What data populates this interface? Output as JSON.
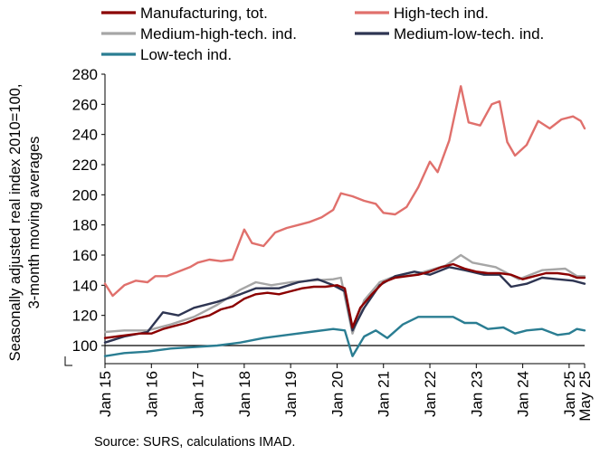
{
  "chart_data": {
    "type": "line",
    "xlabel": "",
    "ylabel_lines": [
      "Seasonally adjusted real  index 2010=100,",
      "3-month moving averages"
    ],
    "ylim": [
      88,
      280
    ],
    "yticks": [
      100,
      120,
      140,
      160,
      180,
      200,
      220,
      240,
      260,
      280
    ],
    "x_range": [
      "2015-01",
      "2025-05"
    ],
    "xticks": [
      {
        "date": "2015-01",
        "label": "Jan 15"
      },
      {
        "date": "2016-01",
        "label": "Jan 16"
      },
      {
        "date": "2017-01",
        "label": "Jan 17"
      },
      {
        "date": "2018-01",
        "label": "Jan 18"
      },
      {
        "date": "2019-01",
        "label": "Jan 19"
      },
      {
        "date": "2020-01",
        "label": "Jan 20"
      },
      {
        "date": "2021-01",
        "label": "Jan 21"
      },
      {
        "date": "2022-01",
        "label": "Jan 22"
      },
      {
        "date": "2023-01",
        "label": "Jan 23"
      },
      {
        "date": "2024-01",
        "label": "Jan 24"
      },
      {
        "date": "2025-01",
        "label": "Jan 25"
      },
      {
        "date": "2025-05",
        "label": "May 25"
      }
    ],
    "reference_line": 100,
    "grid": false,
    "legend_position": "top",
    "source": "Source: SURS, calculations IMAD.",
    "series": [
      {
        "name": "Manufacturing, tot.",
        "color": "#8b0000",
        "width": 2.4,
        "points": [
          [
            "2015-01",
            105
          ],
          [
            "2015-04",
            106
          ],
          [
            "2015-07",
            107
          ],
          [
            "2015-10",
            108
          ],
          [
            "2016-01",
            108
          ],
          [
            "2016-04",
            111
          ],
          [
            "2016-07",
            113
          ],
          [
            "2016-10",
            115
          ],
          [
            "2017-01",
            118
          ],
          [
            "2017-04",
            120
          ],
          [
            "2017-07",
            124
          ],
          [
            "2017-10",
            126
          ],
          [
            "2018-01",
            131
          ],
          [
            "2018-04",
            134
          ],
          [
            "2018-07",
            135
          ],
          [
            "2018-10",
            134
          ],
          [
            "2019-01",
            136
          ],
          [
            "2019-04",
            138
          ],
          [
            "2019-07",
            139
          ],
          [
            "2019-10",
            139
          ],
          [
            "2020-01",
            140
          ],
          [
            "2020-03",
            138
          ],
          [
            "2020-05",
            112
          ],
          [
            "2020-07",
            125
          ],
          [
            "2020-10",
            134
          ],
          [
            "2021-01",
            142
          ],
          [
            "2021-04",
            145
          ],
          [
            "2021-07",
            146
          ],
          [
            "2021-10",
            147
          ],
          [
            "2022-01",
            149
          ],
          [
            "2022-04",
            152
          ],
          [
            "2022-07",
            154
          ],
          [
            "2022-10",
            151
          ],
          [
            "2023-01",
            149
          ],
          [
            "2023-04",
            148
          ],
          [
            "2023-07",
            148
          ],
          [
            "2023-10",
            147
          ],
          [
            "2024-01",
            144
          ],
          [
            "2024-04",
            146
          ],
          [
            "2024-07",
            148
          ],
          [
            "2024-10",
            148
          ],
          [
            "2025-01",
            147
          ],
          [
            "2025-03",
            145
          ],
          [
            "2025-05",
            145
          ]
        ]
      },
      {
        "name": "High-tech ind.",
        "color": "#e0706c",
        "width": 2.4,
        "points": [
          [
            "2015-01",
            141
          ],
          [
            "2015-03",
            133
          ],
          [
            "2015-06",
            140
          ],
          [
            "2015-09",
            143
          ],
          [
            "2015-12",
            142
          ],
          [
            "2016-02",
            146
          ],
          [
            "2016-05",
            146
          ],
          [
            "2016-08",
            149
          ],
          [
            "2016-11",
            152
          ],
          [
            "2017-01",
            155
          ],
          [
            "2017-04",
            157
          ],
          [
            "2017-07",
            156
          ],
          [
            "2017-10",
            157
          ],
          [
            "2018-01",
            177
          ],
          [
            "2018-03",
            168
          ],
          [
            "2018-06",
            166
          ],
          [
            "2018-09",
            175
          ],
          [
            "2018-12",
            178
          ],
          [
            "2019-03",
            180
          ],
          [
            "2019-06",
            182
          ],
          [
            "2019-09",
            185
          ],
          [
            "2019-12",
            190
          ],
          [
            "2020-02",
            201
          ],
          [
            "2020-05",
            199
          ],
          [
            "2020-08",
            196
          ],
          [
            "2020-11",
            194
          ],
          [
            "2021-01",
            188
          ],
          [
            "2021-04",
            187
          ],
          [
            "2021-07",
            192
          ],
          [
            "2021-10",
            205
          ],
          [
            "2022-01",
            222
          ],
          [
            "2022-03",
            215
          ],
          [
            "2022-06",
            236
          ],
          [
            "2022-09",
            272
          ],
          [
            "2022-11",
            248
          ],
          [
            "2023-02",
            246
          ],
          [
            "2023-05",
            260
          ],
          [
            "2023-07",
            262
          ],
          [
            "2023-09",
            235
          ],
          [
            "2023-11",
            226
          ],
          [
            "2024-02",
            233
          ],
          [
            "2024-05",
            249
          ],
          [
            "2024-08",
            244
          ],
          [
            "2024-11",
            250
          ],
          [
            "2025-02",
            252
          ],
          [
            "2025-04",
            249
          ],
          [
            "2025-05",
            244
          ]
        ]
      },
      {
        "name": "Medium-high-tech. ind.",
        "color": "#a6a6a6",
        "width": 2.4,
        "points": [
          [
            "2015-01",
            109
          ],
          [
            "2015-06",
            110
          ],
          [
            "2015-12",
            110
          ],
          [
            "2016-06",
            114
          ],
          [
            "2016-12",
            119
          ],
          [
            "2017-06",
            127
          ],
          [
            "2017-12",
            137
          ],
          [
            "2018-04",
            142
          ],
          [
            "2018-08",
            140
          ],
          [
            "2019-01",
            142
          ],
          [
            "2019-06",
            143
          ],
          [
            "2019-12",
            144
          ],
          [
            "2020-02",
            145
          ],
          [
            "2020-05",
            108
          ],
          [
            "2020-08",
            130
          ],
          [
            "2020-12",
            142
          ],
          [
            "2021-03",
            145
          ],
          [
            "2021-09",
            147
          ],
          [
            "2022-01",
            150
          ],
          [
            "2022-05",
            153
          ],
          [
            "2022-09",
            160
          ],
          [
            "2022-12",
            155
          ],
          [
            "2023-06",
            152
          ],
          [
            "2023-12",
            144
          ],
          [
            "2024-06",
            150
          ],
          [
            "2024-12",
            151
          ],
          [
            "2025-03",
            146
          ],
          [
            "2025-05",
            146
          ]
        ]
      },
      {
        "name": "Medium-low-tech. ind.",
        "color": "#2e3552",
        "width": 2.4,
        "points": [
          [
            "2015-01",
            102
          ],
          [
            "2015-06",
            106
          ],
          [
            "2015-12",
            109
          ],
          [
            "2016-04",
            122
          ],
          [
            "2016-08",
            120
          ],
          [
            "2016-12",
            125
          ],
          [
            "2017-06",
            129
          ],
          [
            "2017-12",
            134
          ],
          [
            "2018-04",
            138
          ],
          [
            "2018-10",
            138
          ],
          [
            "2019-03",
            142
          ],
          [
            "2019-08",
            144
          ],
          [
            "2019-12",
            140
          ],
          [
            "2020-03",
            136
          ],
          [
            "2020-05",
            110
          ],
          [
            "2020-08",
            125
          ],
          [
            "2020-12",
            140
          ],
          [
            "2021-04",
            146
          ],
          [
            "2021-09",
            149
          ],
          [
            "2022-01",
            147
          ],
          [
            "2022-06",
            152
          ],
          [
            "2022-10",
            150
          ],
          [
            "2023-03",
            147
          ],
          [
            "2023-07",
            147
          ],
          [
            "2023-10",
            139
          ],
          [
            "2024-02",
            141
          ],
          [
            "2024-06",
            145
          ],
          [
            "2024-10",
            144
          ],
          [
            "2025-02",
            143
          ],
          [
            "2025-05",
            141
          ]
        ]
      },
      {
        "name": "Low-tech ind.",
        "color": "#2a7d92",
        "width": 2.4,
        "points": [
          [
            "2015-01",
            93
          ],
          [
            "2015-06",
            95
          ],
          [
            "2015-12",
            96
          ],
          [
            "2016-06",
            98
          ],
          [
            "2016-12",
            99
          ],
          [
            "2017-06",
            100
          ],
          [
            "2017-12",
            102
          ],
          [
            "2018-06",
            105
          ],
          [
            "2018-12",
            107
          ],
          [
            "2019-06",
            109
          ],
          [
            "2019-12",
            111
          ],
          [
            "2020-03",
            110
          ],
          [
            "2020-05",
            93
          ],
          [
            "2020-08",
            106
          ],
          [
            "2020-11",
            110
          ],
          [
            "2021-02",
            105
          ],
          [
            "2021-06",
            114
          ],
          [
            "2021-10",
            119
          ],
          [
            "2022-03",
            119
          ],
          [
            "2022-07",
            119
          ],
          [
            "2022-10",
            115
          ],
          [
            "2023-01",
            115
          ],
          [
            "2023-04",
            111
          ],
          [
            "2023-08",
            112
          ],
          [
            "2023-11",
            108
          ],
          [
            "2024-02",
            110
          ],
          [
            "2024-06",
            111
          ],
          [
            "2024-10",
            107
          ],
          [
            "2025-01",
            108
          ],
          [
            "2025-03",
            111
          ],
          [
            "2025-05",
            110
          ]
        ]
      }
    ]
  }
}
